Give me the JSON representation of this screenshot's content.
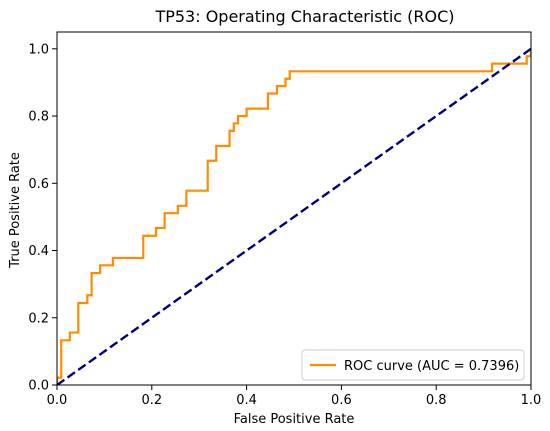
{
  "colors": {
    "roc": "#ff8c00",
    "diagonal": "#000080",
    "axis": "#000000",
    "legend_border": "#cccccc"
  },
  "chart_data": {
    "type": "line",
    "title": "TP53: Operating Characteristic (ROC)",
    "xlabel": "False Positive Rate",
    "ylabel": "True Positive Rate",
    "xlim": [
      0.0,
      1.0
    ],
    "ylim": [
      0.0,
      1.05
    ],
    "xticks": [
      0.0,
      0.2,
      0.4,
      0.6,
      0.8,
      1.0
    ],
    "yticks": [
      0.0,
      0.2,
      0.4,
      0.6,
      0.8,
      1.0
    ],
    "xtick_labels": [
      "0.0",
      "0.2",
      "0.4",
      "0.6",
      "0.8",
      "1.0"
    ],
    "ytick_labels": [
      "0.0",
      "0.2",
      "0.4",
      "0.6",
      "0.8",
      "1.0"
    ],
    "grid": false,
    "legend_position": "lower-right",
    "series": [
      {
        "name": "ROC curve (AUC = 0.7396)",
        "style": "solid",
        "color": "#ff8c00",
        "points": [
          [
            0.0,
            0.0
          ],
          [
            0.0,
            0.022
          ],
          [
            0.009,
            0.022
          ],
          [
            0.009,
            0.133
          ],
          [
            0.027,
            0.133
          ],
          [
            0.027,
            0.156
          ],
          [
            0.045,
            0.156
          ],
          [
            0.045,
            0.244
          ],
          [
            0.064,
            0.244
          ],
          [
            0.064,
            0.267
          ],
          [
            0.073,
            0.267
          ],
          [
            0.073,
            0.333
          ],
          [
            0.091,
            0.333
          ],
          [
            0.091,
            0.356
          ],
          [
            0.118,
            0.356
          ],
          [
            0.118,
            0.378
          ],
          [
            0.182,
            0.378
          ],
          [
            0.182,
            0.444
          ],
          [
            0.209,
            0.444
          ],
          [
            0.209,
            0.467
          ],
          [
            0.227,
            0.467
          ],
          [
            0.227,
            0.511
          ],
          [
            0.255,
            0.511
          ],
          [
            0.255,
            0.533
          ],
          [
            0.273,
            0.533
          ],
          [
            0.273,
            0.578
          ],
          [
            0.318,
            0.578
          ],
          [
            0.318,
            0.667
          ],
          [
            0.336,
            0.667
          ],
          [
            0.336,
            0.711
          ],
          [
            0.364,
            0.711
          ],
          [
            0.364,
            0.756
          ],
          [
            0.373,
            0.756
          ],
          [
            0.373,
            0.778
          ],
          [
            0.382,
            0.778
          ],
          [
            0.382,
            0.8
          ],
          [
            0.4,
            0.8
          ],
          [
            0.4,
            0.822
          ],
          [
            0.445,
            0.822
          ],
          [
            0.445,
            0.867
          ],
          [
            0.464,
            0.867
          ],
          [
            0.464,
            0.889
          ],
          [
            0.482,
            0.889
          ],
          [
            0.482,
            0.911
          ],
          [
            0.491,
            0.911
          ],
          [
            0.491,
            0.933
          ],
          [
            0.918,
            0.933
          ],
          [
            0.918,
            0.956
          ],
          [
            0.991,
            0.956
          ],
          [
            0.991,
            0.978
          ],
          [
            1.0,
            0.978
          ],
          [
            1.0,
            1.0
          ]
        ]
      },
      {
        "name": "",
        "style": "dashed",
        "color": "#000080",
        "points": [
          [
            0.0,
            0.0
          ],
          [
            1.0,
            1.0
          ]
        ]
      }
    ]
  }
}
